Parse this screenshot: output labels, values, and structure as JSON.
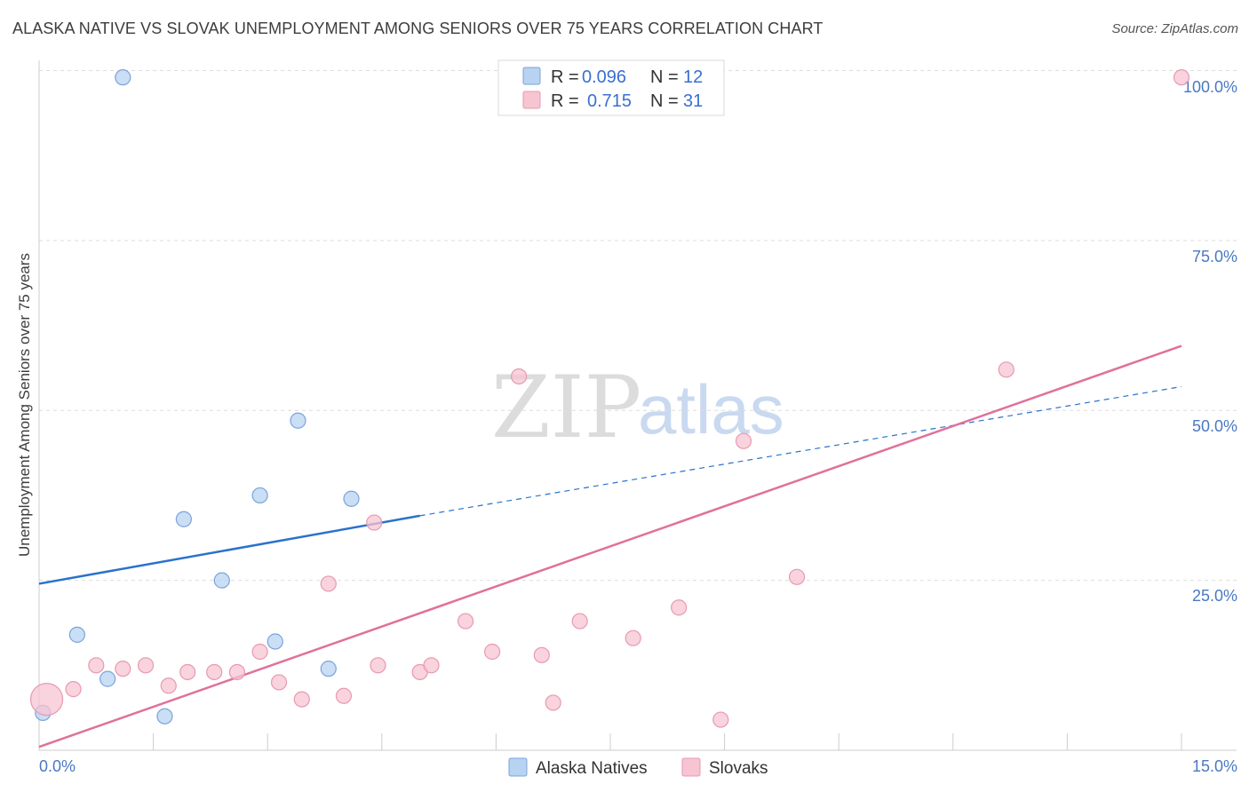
{
  "title": "ALASKA NATIVE VS SLOVAK UNEMPLOYMENT AMONG SENIORS OVER 75 YEARS CORRELATION CHART",
  "source": "Source: ZipAtlas.com",
  "watermark": {
    "zip": "ZIP",
    "atlas": "atlas"
  },
  "colors": {
    "blue_fill": "#b8d3f2",
    "blue_stroke": "#7aa3da",
    "blue_line": "#2a72cc",
    "pink_fill": "#f7c4d2",
    "pink_stroke": "#e79ab1",
    "pink_line": "#e0719a",
    "grid": "#dddddd",
    "axis_label": "#4a78c2"
  },
  "chart_data": {
    "type": "scatter",
    "title": "ALASKA NATIVE VS SLOVAK UNEMPLOYMENT AMONG SENIORS OVER 75 YEARS CORRELATION CHART",
    "xlabel": "",
    "ylabel": "Unemployment Among Seniors over 75 years",
    "xlim": [
      0,
      15
    ],
    "ylim": [
      0,
      100
    ],
    "x_tick_labels": {
      "min": "0.0%",
      "max": "15.0%"
    },
    "y_tick_labels": [
      "25.0%",
      "50.0%",
      "75.0%",
      "100.0%"
    ],
    "y_tick_values": [
      25,
      50,
      75,
      100
    ],
    "legend": {
      "rows": [
        {
          "r_label": "R =",
          "r_value": "0.096",
          "n_label": "N =",
          "n_value": "12"
        },
        {
          "r_label": "R =",
          "r_value": "0.715",
          "n_label": "N =",
          "n_value": "31"
        }
      ]
    },
    "series": [
      {
        "name": "Alaska Natives",
        "color": "blue",
        "points": [
          [
            0.05,
            5.5
          ],
          [
            1.1,
            99.0
          ],
          [
            0.5,
            17.0
          ],
          [
            0.9,
            10.5
          ],
          [
            1.9,
            34.0
          ],
          [
            1.65,
            5.0
          ],
          [
            2.4,
            25.0
          ],
          [
            2.9,
            37.5
          ],
          [
            3.1,
            16.0
          ],
          [
            3.4,
            48.5
          ],
          [
            3.8,
            12.0
          ],
          [
            4.1,
            37.0
          ]
        ],
        "trend": {
          "x0": 0,
          "y0": 24.5,
          "x1": 5.0,
          "y1": 34.5,
          "dash_x1": 15.0,
          "dash_y1": 53.5
        }
      },
      {
        "name": "Slovaks",
        "color": "pink",
        "points": [
          [
            0.1,
            7.5
          ],
          [
            0.45,
            9.0
          ],
          [
            0.75,
            12.5
          ],
          [
            1.1,
            12.0
          ],
          [
            1.4,
            12.5
          ],
          [
            1.7,
            9.5
          ],
          [
            1.95,
            11.5
          ],
          [
            2.3,
            11.5
          ],
          [
            2.6,
            11.5
          ],
          [
            2.9,
            14.5
          ],
          [
            3.15,
            10.0
          ],
          [
            3.45,
            7.5
          ],
          [
            3.8,
            24.5
          ],
          [
            4.0,
            8.0
          ],
          [
            4.4,
            33.5
          ],
          [
            4.45,
            12.5
          ],
          [
            5.0,
            11.5
          ],
          [
            5.15,
            12.5
          ],
          [
            5.6,
            19.0
          ],
          [
            5.95,
            14.5
          ],
          [
            6.3,
            55.0
          ],
          [
            6.6,
            14.0
          ],
          [
            6.75,
            7.0
          ],
          [
            7.1,
            19.0
          ],
          [
            7.8,
            16.5
          ],
          [
            8.4,
            21.0
          ],
          [
            8.95,
            4.5
          ],
          [
            9.25,
            45.5
          ],
          [
            9.95,
            25.5
          ],
          [
            12.7,
            56.0
          ],
          [
            15.0,
            99.0
          ]
        ],
        "trend": {
          "x0": 0,
          "y0": 0.5,
          "x1": 15.0,
          "y1": 59.5
        }
      }
    ]
  }
}
